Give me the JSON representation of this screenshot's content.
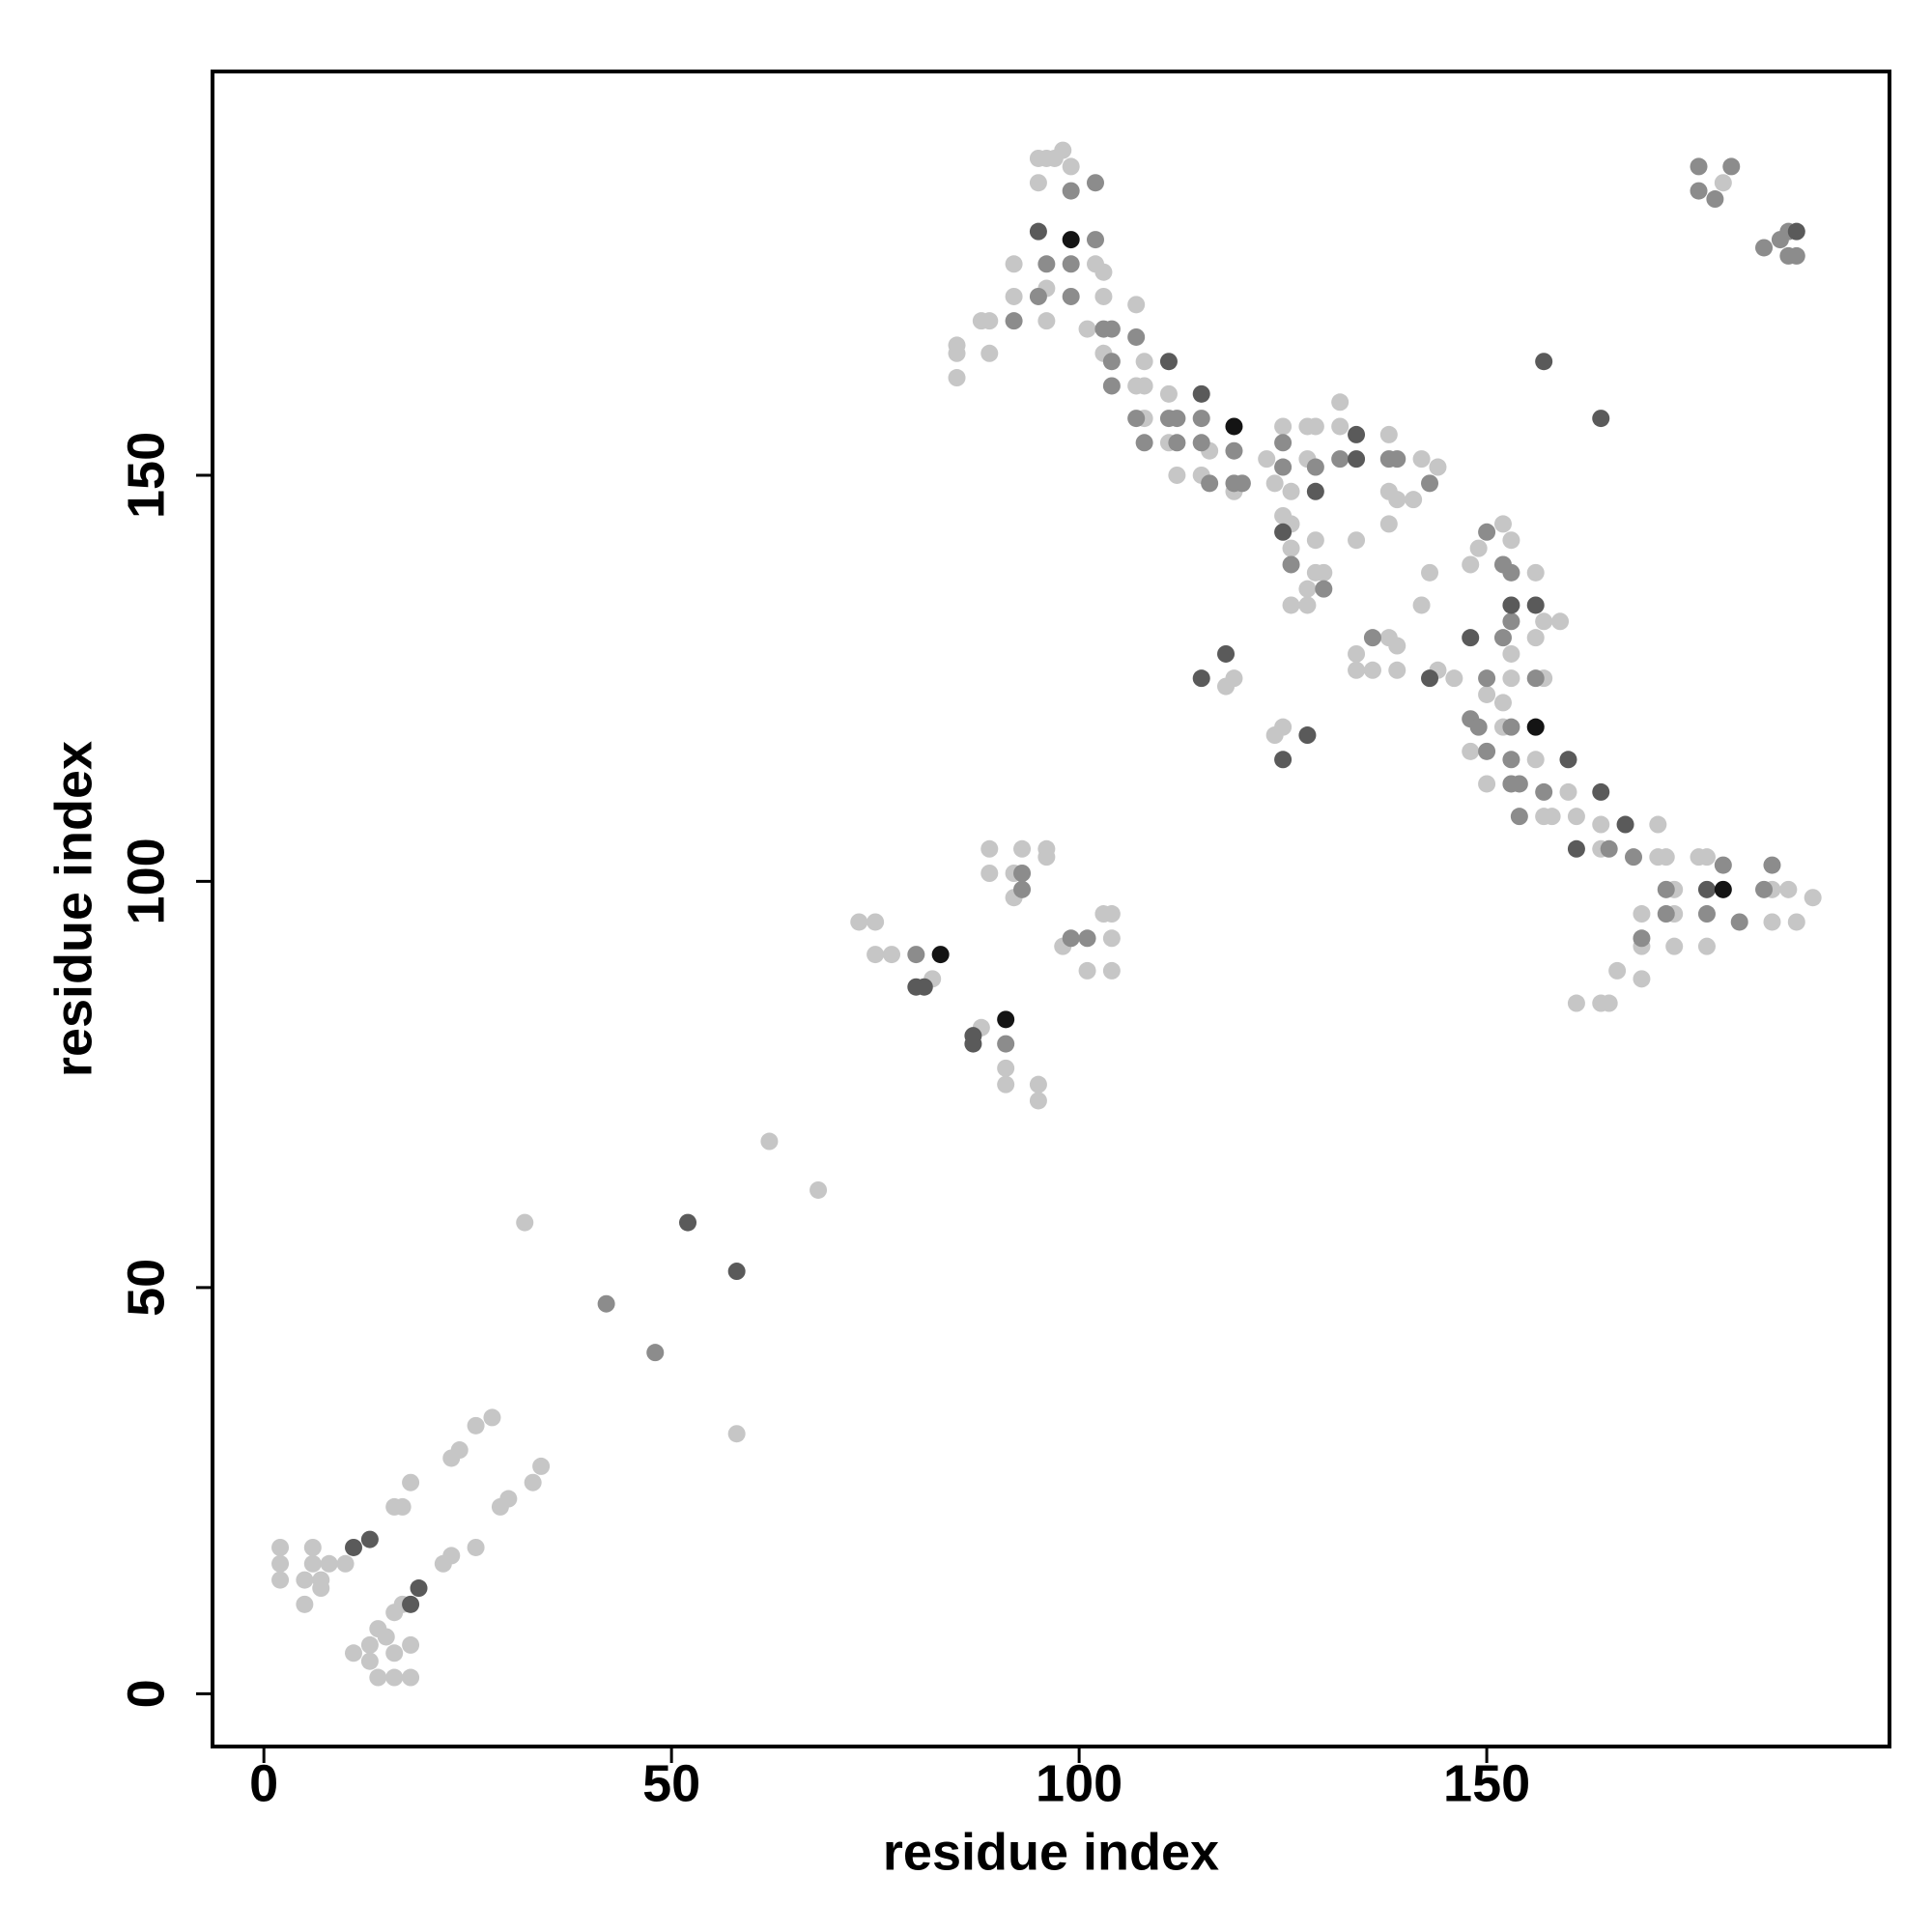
{
  "chart_data": {
    "type": "scatter",
    "xlabel": "residue index",
    "ylabel": "residue index",
    "xlim": [
      -6.3,
      199.4
    ],
    "ylim": [
      -6.5,
      199.7
    ],
    "xticks": [
      0,
      50,
      100,
      150
    ],
    "yticks": [
      0,
      50,
      100,
      150
    ],
    "series": [
      {
        "color": "#c6c6c6",
        "x": [
          2,
          2,
          2,
          5,
          6,
          6,
          7,
          8,
          5,
          7,
          10,
          11,
          14,
          16,
          18,
          13,
          14,
          16,
          17,
          18,
          16,
          15,
          13,
          16,
          17,
          18,
          23,
          24,
          26,
          28,
          22,
          23,
          26,
          29,
          30,
          33,
          34,
          32,
          58,
          62,
          68,
          73,
          75,
          75,
          77,
          82,
          88,
          89,
          89,
          93,
          96,
          96,
          92,
          92,
          91,
          91,
          95,
          95,
          98,
          103,
          104,
          104,
          104,
          101,
          95,
          96,
          97,
          98,
          99,
          95,
          92,
          102,
          103,
          92,
          96,
          103,
          88,
          89,
          96,
          101,
          85,
          85,
          89,
          85,
          103,
          107,
          108,
          107,
          108,
          111,
          108,
          111,
          116,
          112,
          115,
          119,
          123,
          125,
          128,
          129,
          132,
          132,
          128,
          126,
          124,
          125,
          126,
          126,
          129,
          129,
          130,
          128,
          126,
          128,
          134,
          138,
          142,
          144,
          138,
          139,
          141,
          138,
          143,
          142,
          148,
          149,
          152,
          153,
          156,
          157,
          159,
          156,
          153,
          134,
          138,
          139,
          136,
          134,
          139,
          144,
          146,
          153,
          157,
          150,
          152,
          119,
          118,
          125,
          124,
          152,
          148,
          156,
          150,
          160,
          157,
          158,
          161,
          164,
          171,
          164,
          171,
          172,
          176,
          177,
          173,
          185,
          187,
          190,
          169,
          173,
          185,
          188,
          169,
          173,
          177,
          166,
          169,
          161,
          164,
          165,
          179
        ],
        "values": [
          18,
          16,
          14,
          11,
          18,
          16,
          14,
          16,
          14,
          13,
          16,
          5,
          2,
          2,
          2,
          6,
          8,
          10,
          11,
          6,
          5,
          7,
          4,
          23,
          23,
          26,
          29,
          30,
          33,
          34,
          16,
          17,
          18,
          23,
          24,
          26,
          28,
          58,
          32,
          68,
          62,
          95,
          95,
          91,
          91,
          88,
          82,
          104,
          101,
          104,
          104,
          103,
          101,
          98,
          77,
          75,
          75,
          73,
          92,
          96,
          96,
          93,
          89,
          89,
          189,
          189,
          189,
          190,
          188,
          186,
          176,
          176,
          175,
          172,
          173,
          172,
          169,
          169,
          169,
          168,
          166,
          165,
          165,
          162,
          165,
          171,
          164,
          161,
          161,
          160,
          157,
          154,
          153,
          150,
          150,
          148,
          152,
          156,
          156,
          156,
          159,
          156,
          152,
          148,
          149,
          145,
          144,
          141,
          142,
          138,
          138,
          136,
          134,
          134,
          142,
          155,
          152,
          151,
          148,
          147,
          147,
          144,
          138,
          134,
          139,
          141,
          144,
          142,
          138,
          132,
          132,
          130,
          128,
          128,
          130,
          129,
          126,
          126,
          126,
          126,
          125,
          125,
          125,
          123,
          122,
          125,
          124,
          119,
          118,
          119,
          116,
          115,
          112,
          111,
          108,
          108,
          108,
          107,
          107,
          104,
          103,
          103,
          103,
          103,
          99,
          99,
          99,
          98,
          96,
          96,
          95,
          95,
          92,
          92,
          92,
          89,
          88,
          85,
          85,
          85,
          186
        ]
      },
      {
        "color": "#8c8c8c",
        "x": [
          42,
          48,
          80,
          93,
          93,
          91,
          99,
          101,
          99,
          102,
          102,
          96,
          99,
          95,
          99,
          92,
          103,
          104,
          107,
          104,
          104,
          107,
          111,
          112,
          115,
          108,
          112,
          115,
          119,
          116,
          119,
          120,
          125,
          125,
          132,
          129,
          126,
          130,
          138,
          139,
          143,
          150,
          152,
          153,
          153,
          136,
          152,
          150,
          156,
          148,
          149,
          153,
          150,
          153,
          153,
          154,
          157,
          154,
          165,
          168,
          179,
          185,
          172,
          184,
          172,
          177,
          181,
          169,
          176,
          176,
          178,
          180,
          184,
          186,
          187,
          187,
          188
        ],
        "values": [
          48,
          42,
          91,
          101,
          99,
          80,
          93,
          93,
          185,
          186,
          179,
          176,
          176,
          172,
          172,
          169,
          168,
          168,
          167,
          164,
          161,
          157,
          157,
          157,
          157,
          154,
          154,
          154,
          153,
          149,
          149,
          149,
          154,
          151,
          152,
          151,
          139,
          136,
          152,
          152,
          149,
          143,
          139,
          138,
          132,
          130,
          130,
          125,
          125,
          120,
          119,
          119,
          116,
          115,
          112,
          112,
          111,
          108,
          104,
          103,
          102,
          102,
          99,
          99,
          96,
          96,
          95,
          93,
          188,
          185,
          184,
          188,
          178,
          179,
          180,
          177,
          177
        ]
      },
      {
        "color": "#5a5a5a",
        "x": [
          11,
          13,
          18,
          19,
          52,
          58,
          80,
          81,
          87,
          87,
          95,
          111,
          115,
          134,
          134,
          129,
          125,
          153,
          156,
          148,
          143,
          115,
          118,
          128,
          125,
          160,
          164,
          167,
          161,
          177,
          157,
          164,
          188
        ],
        "values": [
          18,
          19,
          11,
          13,
          58,
          52,
          87,
          87,
          81,
          80,
          180,
          164,
          160,
          155,
          152,
          148,
          143,
          134,
          134,
          130,
          125,
          125,
          128,
          118,
          115,
          115,
          111,
          107,
          104,
          99,
          164,
          157,
          180
        ]
      },
      {
        "color": "#141414",
        "x": [
          99,
          83,
          91,
          119,
          156,
          179
        ],
        "values": [
          179,
          91,
          83,
          156,
          119,
          99
        ]
      }
    ]
  }
}
